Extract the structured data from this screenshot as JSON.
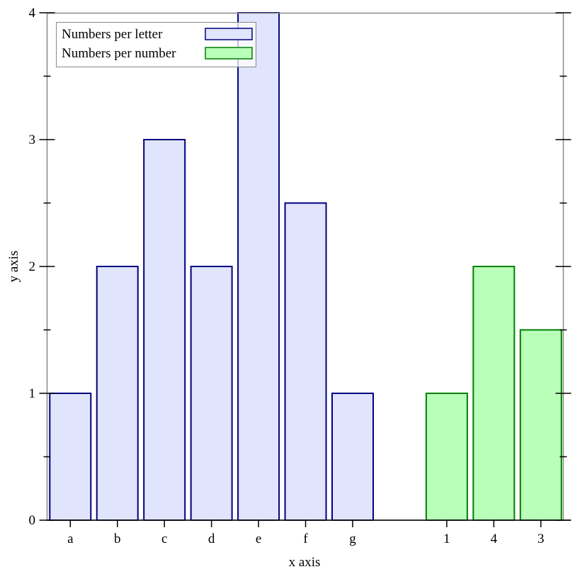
{
  "chart_data": {
    "type": "bar",
    "title": "",
    "xlabel": "x axis",
    "ylabel": "y axis",
    "ylim": [
      0,
      4
    ],
    "yticks": [
      0,
      1,
      2,
      3,
      4
    ],
    "grid": false,
    "legend_placement": "top-left",
    "series": [
      {
        "name": "Numbers per letter",
        "fill": "#e0e4fc",
        "stroke": "#00007f",
        "categories": [
          "a",
          "b",
          "c",
          "d",
          "e",
          "f",
          "g"
        ],
        "values": [
          1,
          2,
          3,
          2,
          4,
          2.5,
          1
        ]
      },
      {
        "name": "Numbers per number",
        "fill": "#b9feb9",
        "stroke": "#007f00",
        "categories": [
          "1",
          "4",
          "3"
        ],
        "values": [
          1,
          2,
          1.5
        ]
      }
    ]
  }
}
